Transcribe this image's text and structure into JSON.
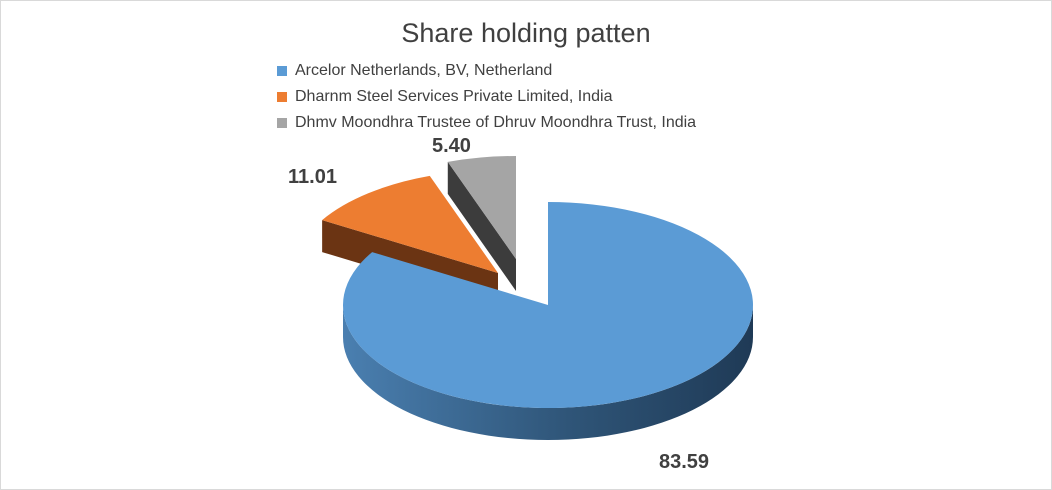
{
  "chart_data": {
    "type": "pie",
    "title": "Share holding patten",
    "legend_position": "top",
    "slices": [
      {
        "label": "Arcelor Netherlands, BV, Netherland",
        "value": 83.59,
        "display_value": "83.59",
        "color": "#5b9bd5"
      },
      {
        "label": "Dharnm Steel Services Private Limited, India",
        "value": 11.01,
        "display_value": "11.01",
        "color": "#ed7d31"
      },
      {
        "label": "Dhmv Moondhra Trustee of Dhruv Moondhra Trust, India",
        "value": 5.4,
        "display_value": "5.40",
        "color": "#a5a5a5"
      }
    ]
  }
}
